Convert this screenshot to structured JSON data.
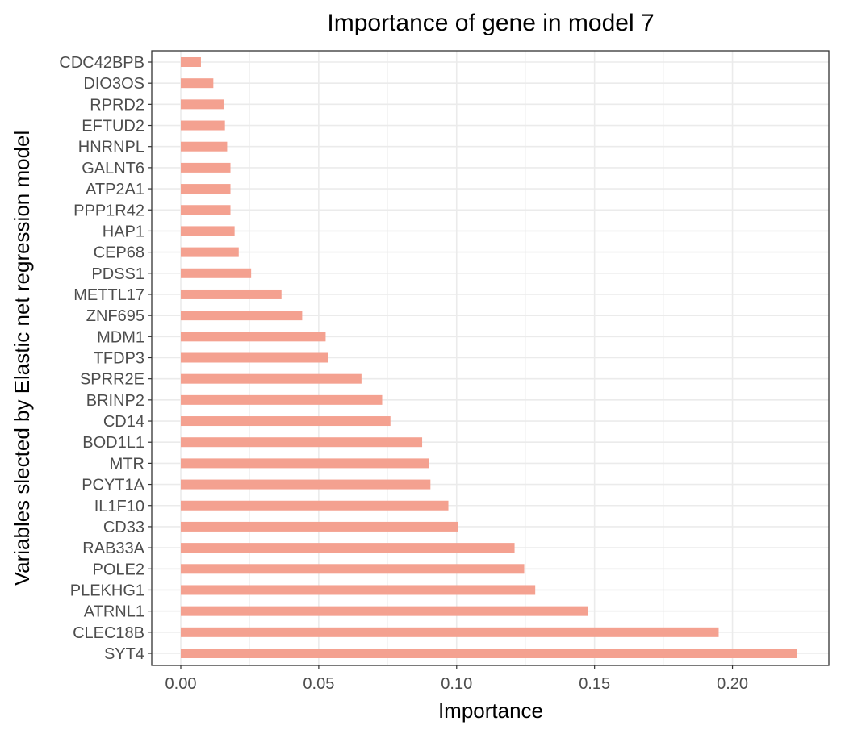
{
  "chart_data": {
    "type": "bar",
    "orientation": "horizontal",
    "title": "Importance of gene in model 7",
    "xlabel": "Importance",
    "ylabel": "Variables slected by Elastic net regression model",
    "xlim": [
      -0.011,
      0.235
    ],
    "xticks": [
      0.0,
      0.05,
      0.1,
      0.15,
      0.2
    ],
    "xtick_labels": [
      "0.00",
      "0.05",
      "0.10",
      "0.15",
      "0.20"
    ],
    "grid": true,
    "legend": "none",
    "bar_color": "#F4A190",
    "categories": [
      "SYT4",
      "CLEC18B",
      "ATRNL1",
      "PLEKHG1",
      "POLE2",
      "RAB33A",
      "CD33",
      "IL1F10",
      "PCYT1A",
      "MTR",
      "BOD1L1",
      "CD14",
      "BRINP2",
      "SPRR2E",
      "TFDP3",
      "MDM1",
      "ZNF695",
      "METTL17",
      "PDSS1",
      "CEP68",
      "HAP1",
      "PPP1R42",
      "ATP2A1",
      "GALNT6",
      "HNRNPL",
      "EFTUD2",
      "RPRD2",
      "DIO3OS",
      "CDC42BPB"
    ],
    "values": [
      0.2235,
      0.195,
      0.1475,
      0.1285,
      0.1245,
      0.121,
      0.1005,
      0.097,
      0.0905,
      0.09,
      0.0875,
      0.076,
      0.073,
      0.0655,
      0.0535,
      0.0525,
      0.044,
      0.0365,
      0.0255,
      0.021,
      0.0195,
      0.018,
      0.018,
      0.018,
      0.0168,
      0.016,
      0.0155,
      0.0118,
      0.0073
    ]
  }
}
